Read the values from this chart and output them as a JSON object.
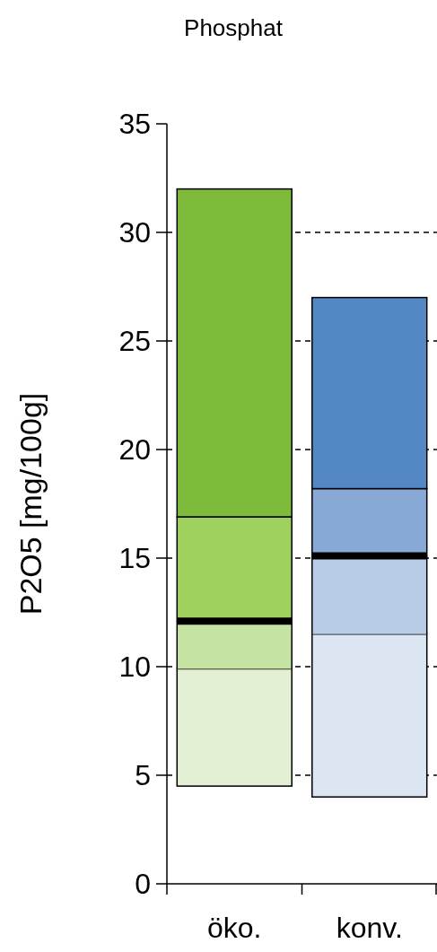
{
  "chart_data": {
    "type": "bar",
    "title": "Phosphat",
    "ylabel": "P2O5 [mg/100g]",
    "categories": [
      "öko.",
      "konv."
    ],
    "series": [
      {
        "colors": [
          "#e3f0d3",
          "#dce5f2"
        ],
        "base": [
          4.5,
          4
        ],
        "values": [
          5.4,
          7.5
        ]
      },
      {
        "colors": [
          "#c5e3a3",
          "#b8cce6"
        ],
        "base": [
          9.9,
          11.5
        ],
        "values": [
          2.2,
          3.6
        ]
      },
      {
        "colors": [
          "#9ed05e",
          "#88a9d6"
        ],
        "base": [
          12.1,
          15.1
        ],
        "values": [
          4.8,
          3.1
        ]
      },
      {
        "colors": [
          "#7fbb3a",
          "#5488c4"
        ],
        "base": [
          16.9,
          18.2
        ],
        "values": [
          15.1,
          8.8
        ]
      }
    ],
    "ylim": [
      0,
      35
    ],
    "yticks": [
      0,
      5,
      10,
      15,
      20,
      25,
      30,
      35
    ],
    "grid": "y"
  }
}
